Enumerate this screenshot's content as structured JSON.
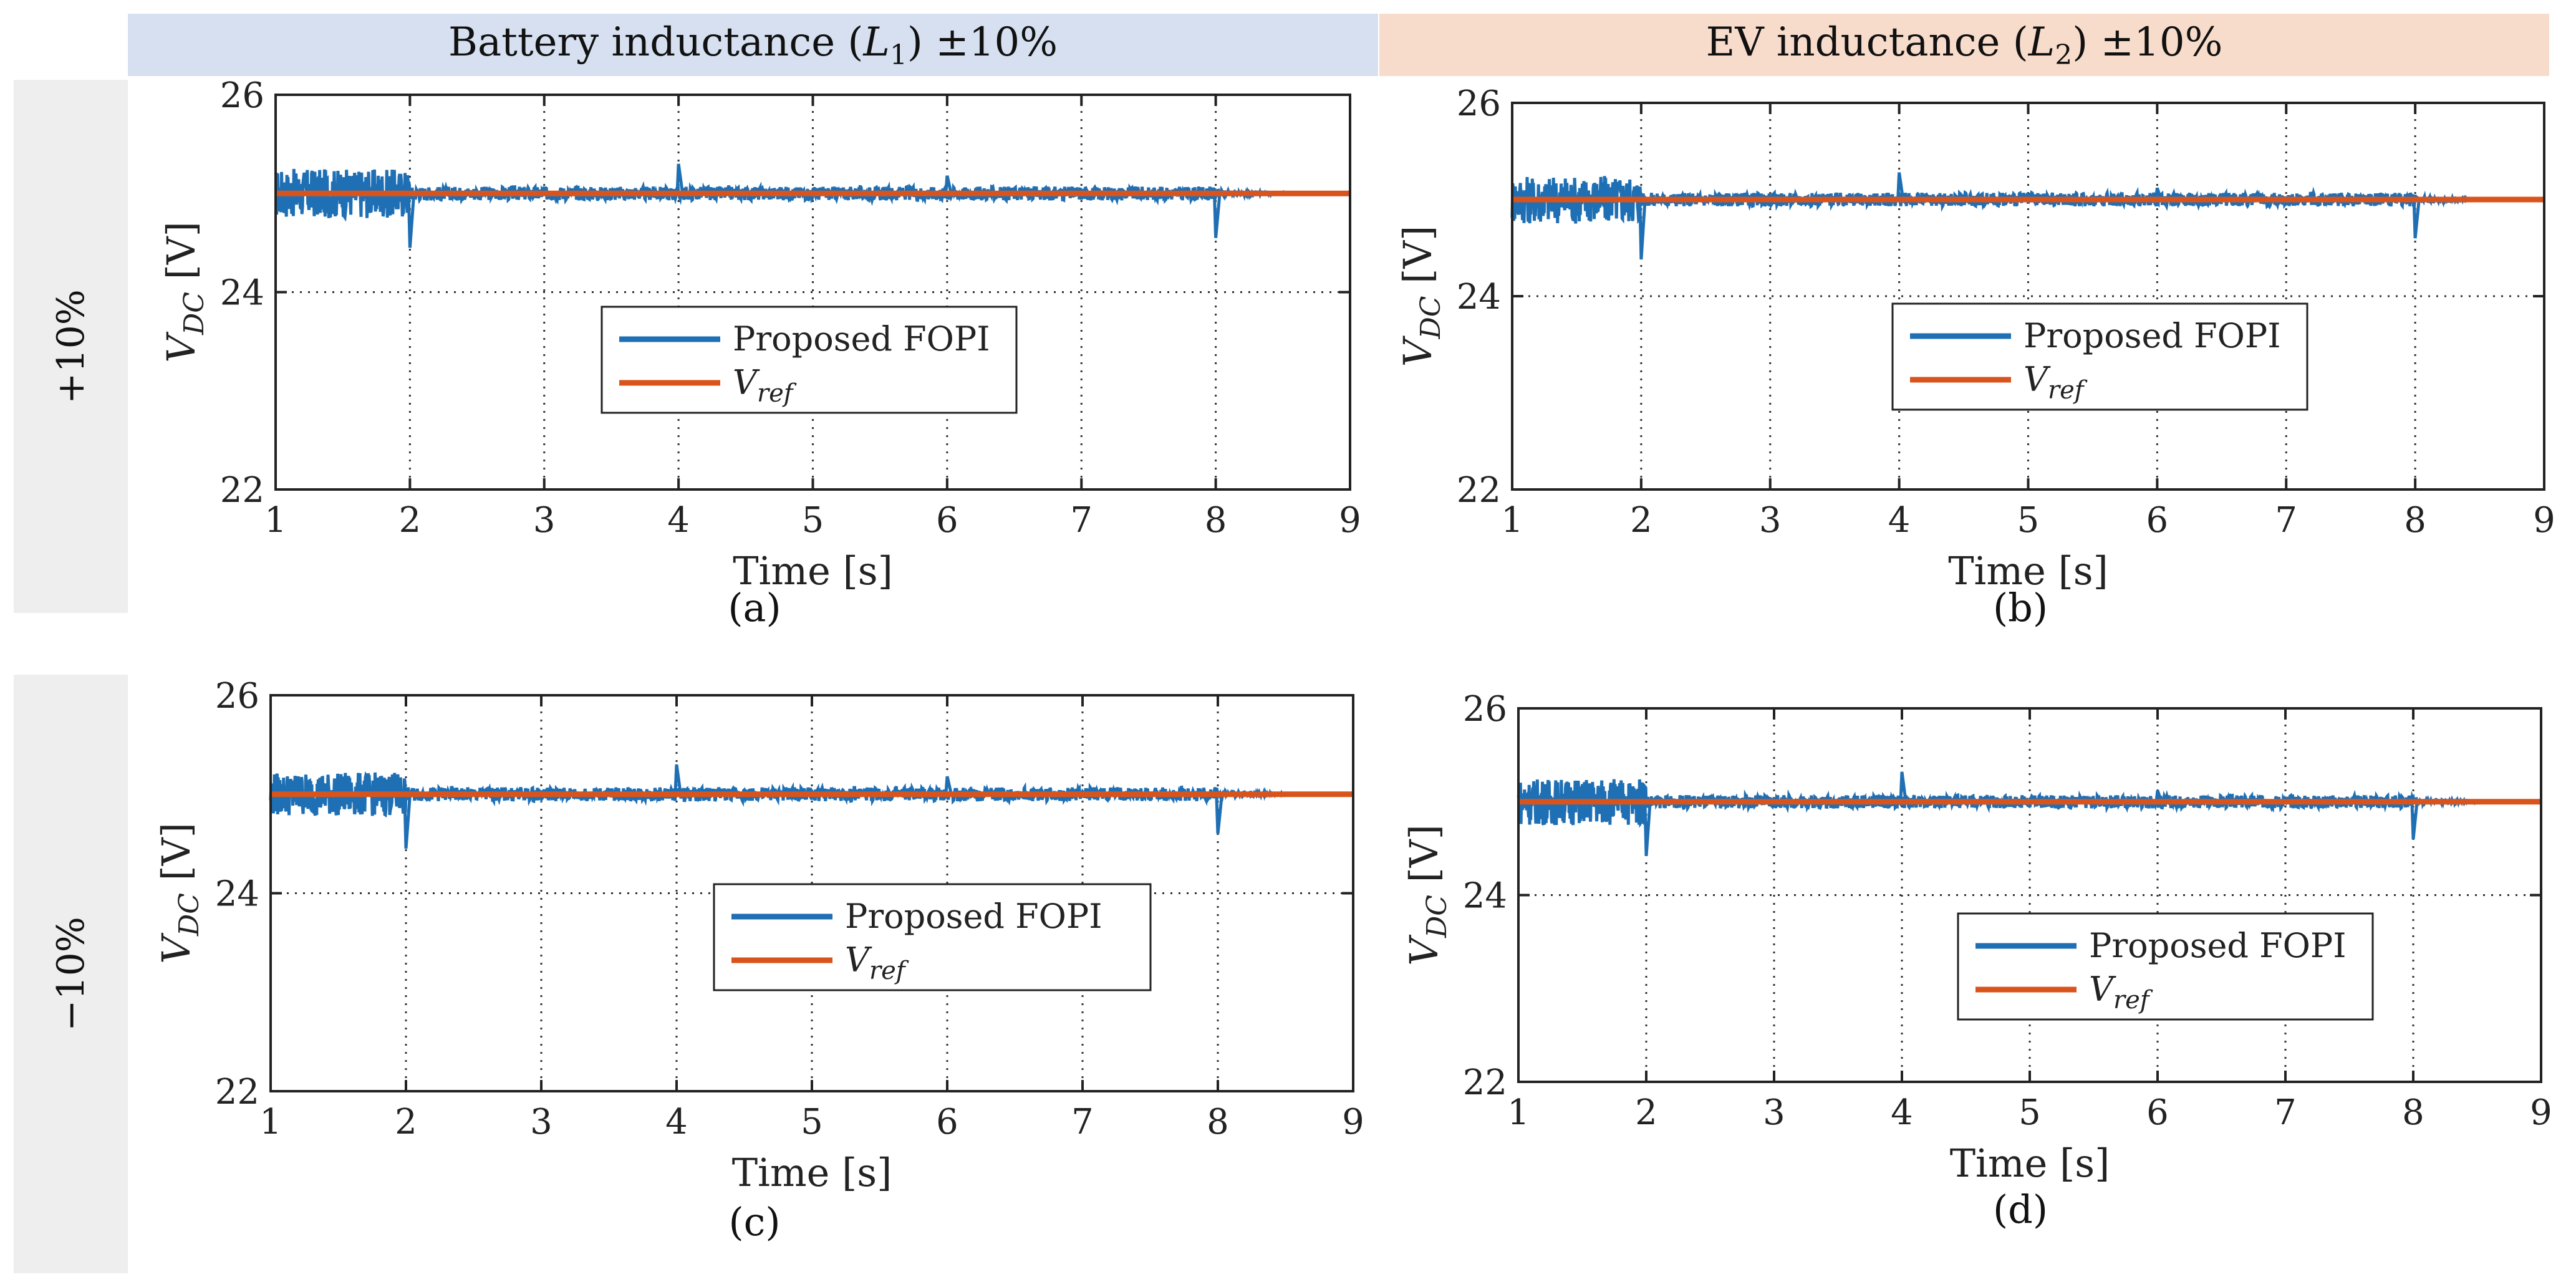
{
  "figure": {
    "col_titles": [
      {
        "text": "Battery inductance (",
        "sym": "L",
        "sub": "1",
        "tail": ") ±10%"
      },
      {
        "text": "EV inductance (",
        "sym": "L",
        "sub": "2",
        "tail": ") ±10%"
      }
    ],
    "row_titles": [
      "+10%",
      "−10%"
    ]
  },
  "colors": {
    "proposed": "#1f6fb4",
    "reference": "#d9541c",
    "left_header": "#d6e0f0",
    "right_header": "#f8dccb",
    "row_header": "#eeeeee"
  },
  "chart_data": [
    {
      "type": "line",
      "panel": "a",
      "caption": "(a)",
      "xlabel": "Time [s]",
      "ylabel_main": "V",
      "ylabel_sub": "DC",
      "ylabel_unit": " [V]",
      "xlim": [
        1,
        9
      ],
      "ylim": [
        22,
        26
      ],
      "xticks": [
        "1",
        "2",
        "3",
        "4",
        "5",
        "6",
        "7",
        "8",
        "9"
      ],
      "yticks": [
        "22",
        "24",
        "26"
      ],
      "grid": true,
      "legend_position": "center",
      "series": [
        {
          "name": "Proposed FOPI",
          "mean": 25,
          "ripple_before_2s": 0.25,
          "ripple_2_to_8s": 0.07,
          "spikes": [
            {
              "t": 2,
              "v": 24.45
            },
            {
              "t": 4,
              "v": 25.3
            },
            {
              "t": 6,
              "v": 25.18
            },
            {
              "t": 8,
              "v": 24.55
            }
          ]
        },
        {
          "name": "V_ref",
          "label_main": "V",
          "label_sub": "ref",
          "value": 25
        }
      ]
    },
    {
      "type": "line",
      "panel": "b",
      "caption": "(b)",
      "xlabel": "Time [s]",
      "ylabel_main": "V",
      "ylabel_sub": "DC",
      "ylabel_unit": " [V]",
      "xlim": [
        1,
        9
      ],
      "ylim": [
        22,
        26
      ],
      "xticks": [
        "1",
        "2",
        "3",
        "4",
        "5",
        "6",
        "7",
        "8",
        "9"
      ],
      "yticks": [
        "22",
        "24",
        "26"
      ],
      "grid": true,
      "legend_position": "center-right",
      "series": [
        {
          "name": "Proposed FOPI",
          "mean": 25,
          "ripple_before_2s": 0.25,
          "ripple_2_to_8s": 0.07,
          "spikes": [
            {
              "t": 2,
              "v": 24.38
            },
            {
              "t": 4,
              "v": 25.28
            },
            {
              "t": 6,
              "v": 25.12
            },
            {
              "t": 8,
              "v": 24.6
            }
          ]
        },
        {
          "name": "V_ref",
          "label_main": "V",
          "label_sub": "ref",
          "value": 25
        }
      ]
    },
    {
      "type": "line",
      "panel": "c",
      "caption": "(c)",
      "xlabel": "Time [s]",
      "ylabel_main": "V",
      "ylabel_sub": "DC",
      "ylabel_unit": " [V]",
      "xlim": [
        1,
        9
      ],
      "ylim": [
        22,
        26
      ],
      "xticks": [
        "1",
        "2",
        "3",
        "4",
        "5",
        "6",
        "7",
        "8",
        "9"
      ],
      "yticks": [
        "22",
        "24",
        "26"
      ],
      "grid": true,
      "legend_position": "center",
      "series": [
        {
          "name": "Proposed FOPI",
          "mean": 25,
          "ripple_before_2s": 0.22,
          "ripple_2_to_8s": 0.07,
          "spikes": [
            {
              "t": 2,
              "v": 24.45
            },
            {
              "t": 4,
              "v": 25.3
            },
            {
              "t": 6,
              "v": 25.18
            },
            {
              "t": 8,
              "v": 24.6
            }
          ]
        },
        {
          "name": "V_ref",
          "label_main": "V",
          "label_sub": "ref",
          "value": 25
        }
      ]
    },
    {
      "type": "line",
      "panel": "d",
      "caption": "(d)",
      "xlabel": "Time [s]",
      "ylabel_main": "V",
      "ylabel_sub": "DC",
      "ylabel_unit": " [V]",
      "xlim": [
        1,
        9
      ],
      "ylim": [
        22,
        26
      ],
      "xticks": [
        "1",
        "2",
        "3",
        "4",
        "5",
        "6",
        "7",
        "8",
        "9"
      ],
      "yticks": [
        "22",
        "24",
        "26"
      ],
      "grid": true,
      "legend_position": "center-right",
      "series": [
        {
          "name": "Proposed FOPI",
          "mean": 25,
          "ripple_before_2s": 0.25,
          "ripple_2_to_8s": 0.07,
          "spikes": [
            {
              "t": 2,
              "v": 24.42
            },
            {
              "t": 4,
              "v": 25.32
            },
            {
              "t": 6,
              "v": 25.12
            },
            {
              "t": 8,
              "v": 24.6
            }
          ]
        },
        {
          "name": "V_ref",
          "label_main": "V",
          "label_sub": "ref",
          "value": 25
        }
      ]
    }
  ]
}
